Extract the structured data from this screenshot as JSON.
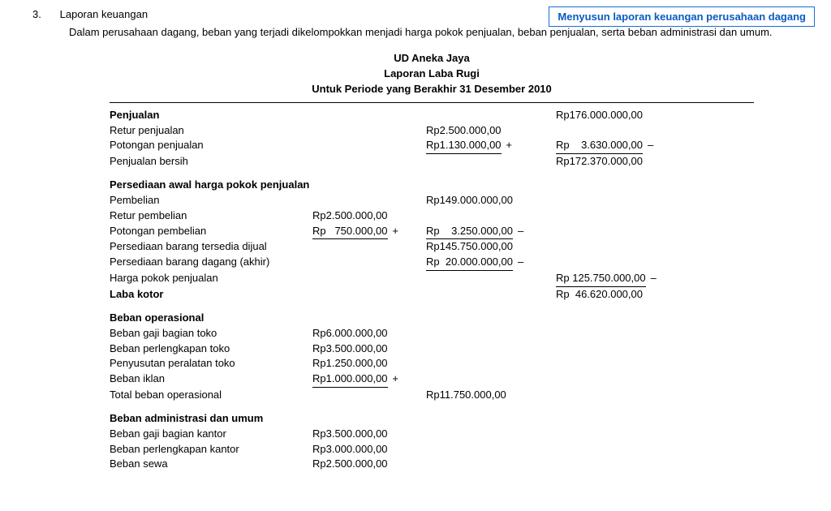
{
  "callout": "Menyusun laporan keuangan perusahaan dagang",
  "section_number": "3.",
  "section_title": "Laporan keuangan",
  "body": "Dalam perusahaan dagang, beban yang terjadi dikelompokkan menjadi harga pokok penjualan, beban penjualan, serta beban administrasi dan umum.",
  "header": {
    "line1": "UD Aneka Jaya",
    "line2": "Laporan Laba Rugi",
    "line3": "Untuk Periode yang Berakhir 31 Desember 2010"
  },
  "rows": {
    "penjualan_label": "Penjualan",
    "penjualan_amt": "Rp176.000.000,00",
    "retur_penj_label": "Retur penjualan",
    "retur_penj_amt": "Rp2.500.000,00",
    "pot_penj_label": "Potongan penjualan",
    "pot_penj_amt": "Rp1.130.000,00",
    "pot_penj_sum": "Rp    3.630.000,00",
    "penj_bersih_label": "Penjualan bersih",
    "penj_bersih_amt": "Rp172.370.000,00",
    "persediaan_awal_label": "Persediaan awal harga pokok penjualan",
    "pembelian_label": "Pembelian",
    "pembelian_amt": "Rp149.000.000,00",
    "retur_pemb_label": "Retur pembelian",
    "retur_pemb_amt": "Rp2.500.000,00",
    "pot_pemb_label": "Potongan pembelian",
    "pot_pemb_amt": "Rp   750.000,00",
    "pot_pemb_sum": "Rp    3.250.000,00",
    "persed_dijual_label": "Persediaan barang tersedia dijual",
    "persed_dijual_amt": "Rp145.750.000,00",
    "persed_akhir_label": "Persediaan barang dagang (akhir)",
    "persed_akhir_amt": "Rp  20.000.000,00",
    "hpp_label": "Harga pokok penjualan",
    "hpp_amt": "Rp 125.750.000,00",
    "laba_kotor_label": "Laba kotor",
    "laba_kotor_amt": "Rp  46.620.000,00",
    "beban_op_label": "Beban operasional",
    "gaji_toko_label": "Beban gaji bagian toko",
    "gaji_toko_amt": "Rp6.000.000,00",
    "perlengkapan_toko_label": "Beban perlengkapan toko",
    "perlengkapan_toko_amt": "Rp3.500.000,00",
    "penyusutan_toko_label": "Penyusutan peralatan toko",
    "penyusutan_toko_amt": "Rp1.250.000,00",
    "iklan_label": "Beban iklan",
    "iklan_amt": "Rp1.000.000,00",
    "total_op_label": "Total beban operasional",
    "total_op_amt": "Rp11.750.000,00",
    "beban_admin_label": "Beban administrasi dan umum",
    "gaji_kantor_label": "Beban gaji bagian kantor",
    "gaji_kantor_amt": "Rp3.500.000,00",
    "perlengkapan_kantor_label": "Beban perlengkapan kantor",
    "perlengkapan_kantor_amt": "Rp3.000.000,00",
    "sewa_label": "Beban sewa",
    "sewa_amt": "Rp2.500.000,00"
  },
  "ops": {
    "plus": "+",
    "minus": "–"
  },
  "colors": {
    "callout_border": "#1a6fd6",
    "callout_text": "#0a5bbf"
  }
}
